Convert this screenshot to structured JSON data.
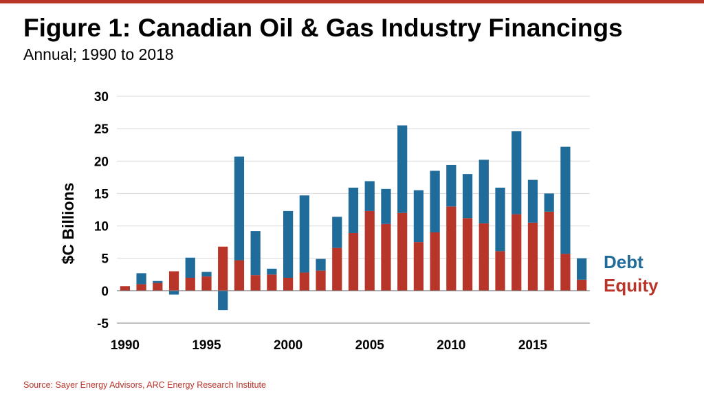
{
  "header": {
    "title": "Figure 1: Canadian Oil & Gas Industry Financings",
    "subtitle": "Annual; 1990 to 2018"
  },
  "footer": {
    "source": "Source: Sayer Energy Advisors, ARC Energy Research Institute"
  },
  "colors": {
    "debt": "#1f6b9a",
    "equity": "#b8352a",
    "accent": "#b8352a"
  },
  "chart_data": {
    "type": "bar",
    "stacked": true,
    "ylabel": "$C Billions",
    "xlabel": "",
    "ylim": [
      -5,
      30
    ],
    "yticks": [
      -5,
      0,
      5,
      10,
      15,
      20,
      25,
      30
    ],
    "xticks": [
      1990,
      1995,
      2000,
      2005,
      2010,
      2015
    ],
    "grid": "horizontal",
    "legend_position": "right",
    "x": [
      1990,
      1991,
      1992,
      1993,
      1994,
      1995,
      1996,
      1997,
      1998,
      1999,
      2000,
      2001,
      2002,
      2003,
      2004,
      2005,
      2006,
      2007,
      2008,
      2009,
      2010,
      2011,
      2012,
      2013,
      2014,
      2015,
      2016,
      2017,
      2018
    ],
    "series": [
      {
        "name": "Equity",
        "values": [
          0.7,
          1.0,
          1.2,
          3.0,
          2.0,
          2.2,
          6.8,
          4.7,
          2.4,
          2.5,
          2.0,
          2.8,
          3.1,
          6.6,
          8.9,
          12.3,
          10.3,
          12.0,
          7.5,
          9.0,
          13.0,
          11.2,
          10.4,
          6.1,
          11.8,
          10.5,
          12.2,
          5.7,
          1.7
        ]
      },
      {
        "name": "Debt",
        "values": [
          0.0,
          1.7,
          0.3,
          -0.6,
          3.1,
          0.7,
          -3.0,
          16.0,
          6.8,
          0.9,
          10.3,
          11.9,
          1.8,
          4.8,
          7.0,
          4.6,
          5.4,
          13.5,
          8.0,
          9.5,
          6.4,
          6.8,
          9.8,
          9.8,
          12.8,
          6.6,
          2.8,
          16.5,
          3.3
        ]
      }
    ]
  }
}
